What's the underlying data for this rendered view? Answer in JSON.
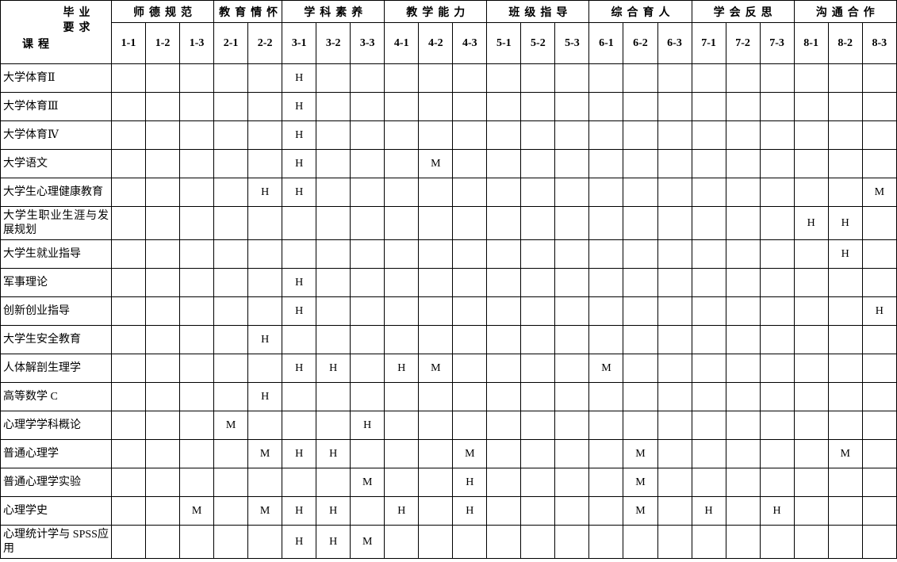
{
  "table": {
    "corner": {
      "top_label_line1": "毕业",
      "top_label_line2": "要求",
      "bottom_label": "课程"
    },
    "groups": [
      {
        "label": "师德规范",
        "span": 3
      },
      {
        "label": "教育情怀",
        "span": 2
      },
      {
        "label": "学科素养",
        "span": 3
      },
      {
        "label": "教学能力",
        "span": 3
      },
      {
        "label": "班级指导",
        "span": 3
      },
      {
        "label": "综合育人",
        "span": 3
      },
      {
        "label": "学会反思",
        "span": 3
      },
      {
        "label": "沟通合作",
        "span": 3
      }
    ],
    "columns": [
      "1-1",
      "1-2",
      "1-3",
      "2-1",
      "2-2",
      "3-1",
      "3-2",
      "3-3",
      "4-1",
      "4-2",
      "4-3",
      "5-1",
      "5-2",
      "5-3",
      "6-1",
      "6-2",
      "6-3",
      "7-1",
      "7-2",
      "7-3",
      "8-1",
      "8-2",
      "8-3"
    ],
    "rows": [
      {
        "course": "大学体育Ⅱ",
        "marks": {
          "3-1": "H"
        }
      },
      {
        "course": "大学体育Ⅲ",
        "marks": {
          "3-1": "H"
        }
      },
      {
        "course": "大学体育Ⅳ",
        "marks": {
          "3-1": "H"
        }
      },
      {
        "course": "大学语文",
        "marks": {
          "3-1": "H",
          "4-2": "M"
        }
      },
      {
        "course": "大学生心理健康教育",
        "marks": {
          "2-2": "H",
          "3-1": "H",
          "8-3": "M"
        }
      },
      {
        "course": "大学生职业生涯与发展规划",
        "tall": true,
        "marks": {
          "8-1": "H",
          "8-2": "H"
        }
      },
      {
        "course": "大学生就业指导",
        "marks": {
          "8-2": "H"
        }
      },
      {
        "course": "军事理论",
        "marks": {
          "3-1": "H"
        }
      },
      {
        "course": "创新创业指导",
        "marks": {
          "3-1": "H",
          "8-3": "H"
        }
      },
      {
        "course": "大学生安全教育",
        "marks": {
          "2-2": "H"
        }
      },
      {
        "course": "人体解剖生理学",
        "marks": {
          "3-1": "H",
          "3-2": "H",
          "4-1": "H",
          "4-2": "M",
          "6-1": "M"
        }
      },
      {
        "course": "高等数学 C",
        "marks": {
          "2-2": "H"
        }
      },
      {
        "course": "心理学学科概论",
        "marks": {
          "2-1": "M",
          "3-3": "H"
        }
      },
      {
        "course": "普通心理学",
        "marks": {
          "2-2": "M",
          "3-1": "H",
          "3-2": "H",
          "4-3": "M",
          "6-2": "M",
          "8-2": "M"
        }
      },
      {
        "course": "普通心理学实验",
        "marks": {
          "3-3": "M",
          "4-3": "H",
          "6-2": "M"
        }
      },
      {
        "course": "心理学史",
        "marks": {
          "1-3": "M",
          "2-2": "M",
          "3-1": "H",
          "3-2": "H",
          "4-1": "H",
          "4-3": "H",
          "6-2": "M",
          "7-1": "H",
          "7-3": "H"
        }
      },
      {
        "course": "心理统计学与 SPSS应用",
        "tall": true,
        "marks": {
          "3-1": "H",
          "3-2": "H",
          "3-3": "M"
        }
      }
    ]
  },
  "colors": {
    "border": "#000000",
    "text": "#000000",
    "background": "#ffffff"
  }
}
